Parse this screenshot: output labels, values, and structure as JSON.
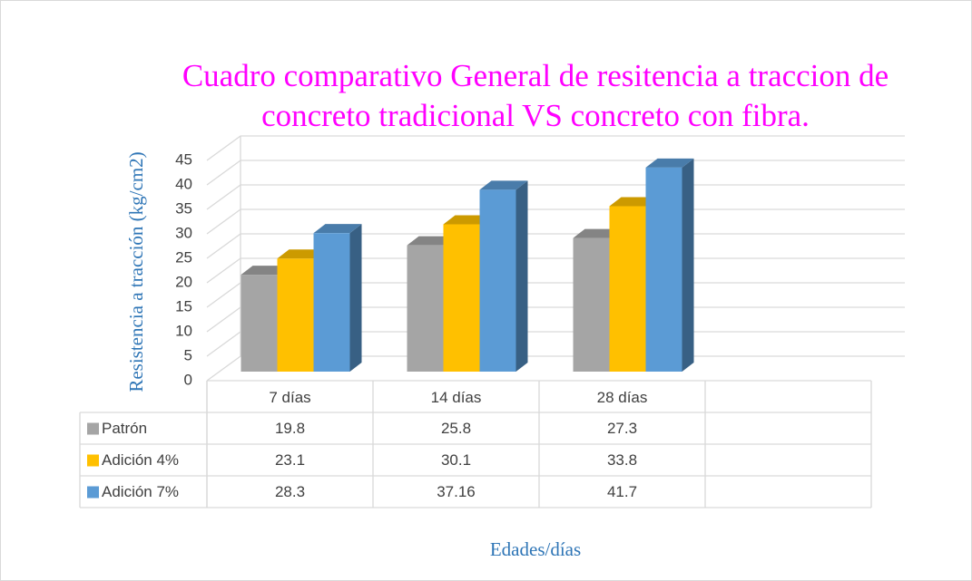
{
  "chart_data": {
    "type": "bar3d",
    "title": "Cuadro comparativo General de resitencia a traccion de concreto tradicional VS concreto con fibra.",
    "y_label": "Resistencia a tracción (kg/cm2)",
    "x_label": "Edades/días",
    "categories": [
      "7  días",
      "14 días",
      "28 días",
      null
    ],
    "series": [
      {
        "name": "Patrón",
        "color": "#a5a5a5",
        "values": [
          19.8,
          25.8,
          27.3,
          null
        ]
      },
      {
        "name": "Adición 4%",
        "color": "#ffc000",
        "values": [
          23.1,
          30.1,
          33.8,
          null
        ]
      },
      {
        "name": "Adición 7%",
        "color": "#5b9bd5",
        "values": [
          28.3,
          37.16,
          41.7,
          null
        ]
      }
    ],
    "ylim": [
      0,
      45
    ],
    "yticks": [
      0,
      5,
      10,
      15,
      20,
      25,
      30,
      35,
      40,
      45
    ],
    "grid": true,
    "data_table": true
  }
}
